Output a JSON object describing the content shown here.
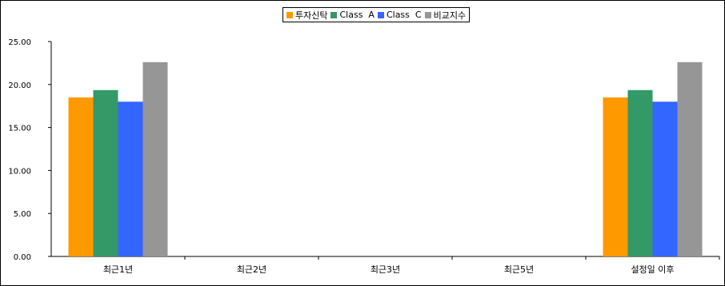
{
  "chart_data": {
    "type": "bar",
    "categories": [
      "최근1년",
      "최근2년",
      "최근3년",
      "최근5년",
      "설정일 이후"
    ],
    "series": [
      {
        "name": "투자신탁",
        "color": "#FF9900",
        "values": [
          18.5,
          null,
          null,
          null,
          18.5
        ]
      },
      {
        "name": "Class  A",
        "color": "#339966",
        "values": [
          19.35,
          null,
          null,
          null,
          19.35
        ]
      },
      {
        "name": "Class  C",
        "color": "#3366FF",
        "values": [
          18.0,
          null,
          null,
          null,
          18.0
        ]
      },
      {
        "name": "비교지수",
        "color": "#969696",
        "values": [
          22.6,
          null,
          null,
          null,
          22.6
        ]
      }
    ],
    "yticks": [
      "0.00",
      "5.00",
      "10.00",
      "15.00",
      "20.00",
      "25.00"
    ],
    "ylim": [
      0,
      25
    ],
    "legend_position": "top-center",
    "grid": false
  }
}
